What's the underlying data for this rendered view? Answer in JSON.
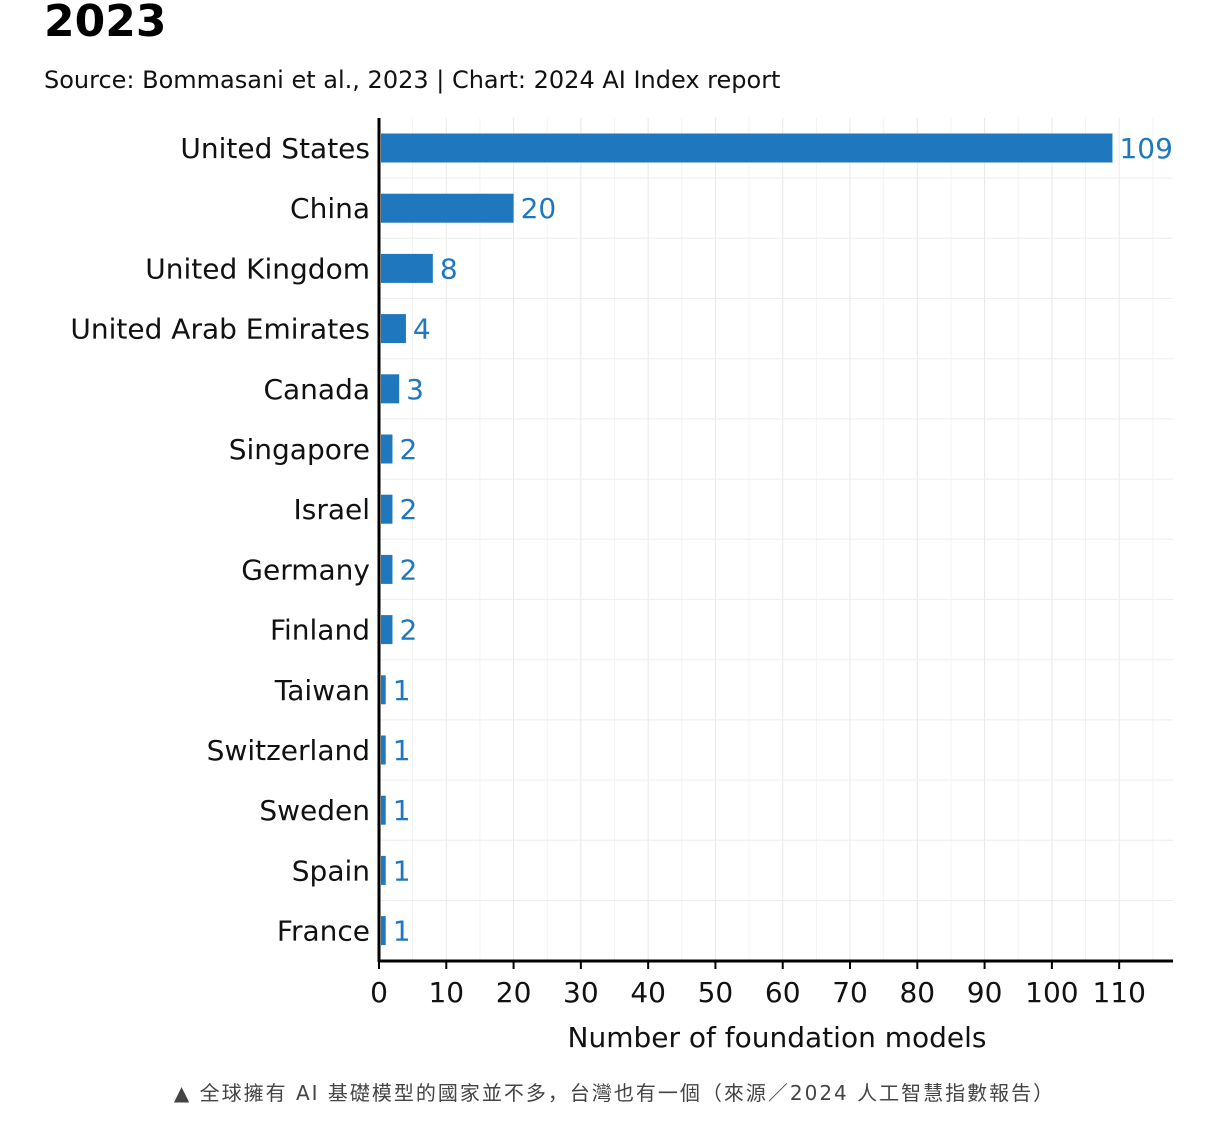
{
  "chart_data": {
    "type": "bar",
    "orientation": "horizontal",
    "title": "2023",
    "subtitle": "Source: Bommasani et al., 2023 | Chart: 2024 AI Index report",
    "xlabel": "Number of foundation models",
    "ylabel": "",
    "xlim": [
      0,
      118
    ],
    "xticks": [
      0,
      10,
      20,
      30,
      40,
      50,
      60,
      70,
      80,
      90,
      100,
      110
    ],
    "grid": true,
    "bar_color": "#1f77bd",
    "label_color": "#1f77bd",
    "categories": [
      "United States",
      "China",
      "United Kingdom",
      "United Arab Emirates",
      "Canada",
      "Singapore",
      "Israel",
      "Germany",
      "Finland",
      "Taiwan",
      "Switzerland",
      "Sweden",
      "Spain",
      "France"
    ],
    "values": [
      109,
      20,
      8,
      4,
      3,
      2,
      2,
      2,
      2,
      1,
      1,
      1,
      1,
      1
    ]
  },
  "caption": "▲ 全球擁有 AI 基礎模型的國家並不多，台灣也有一個（來源／2024 人工智慧指數報告）"
}
